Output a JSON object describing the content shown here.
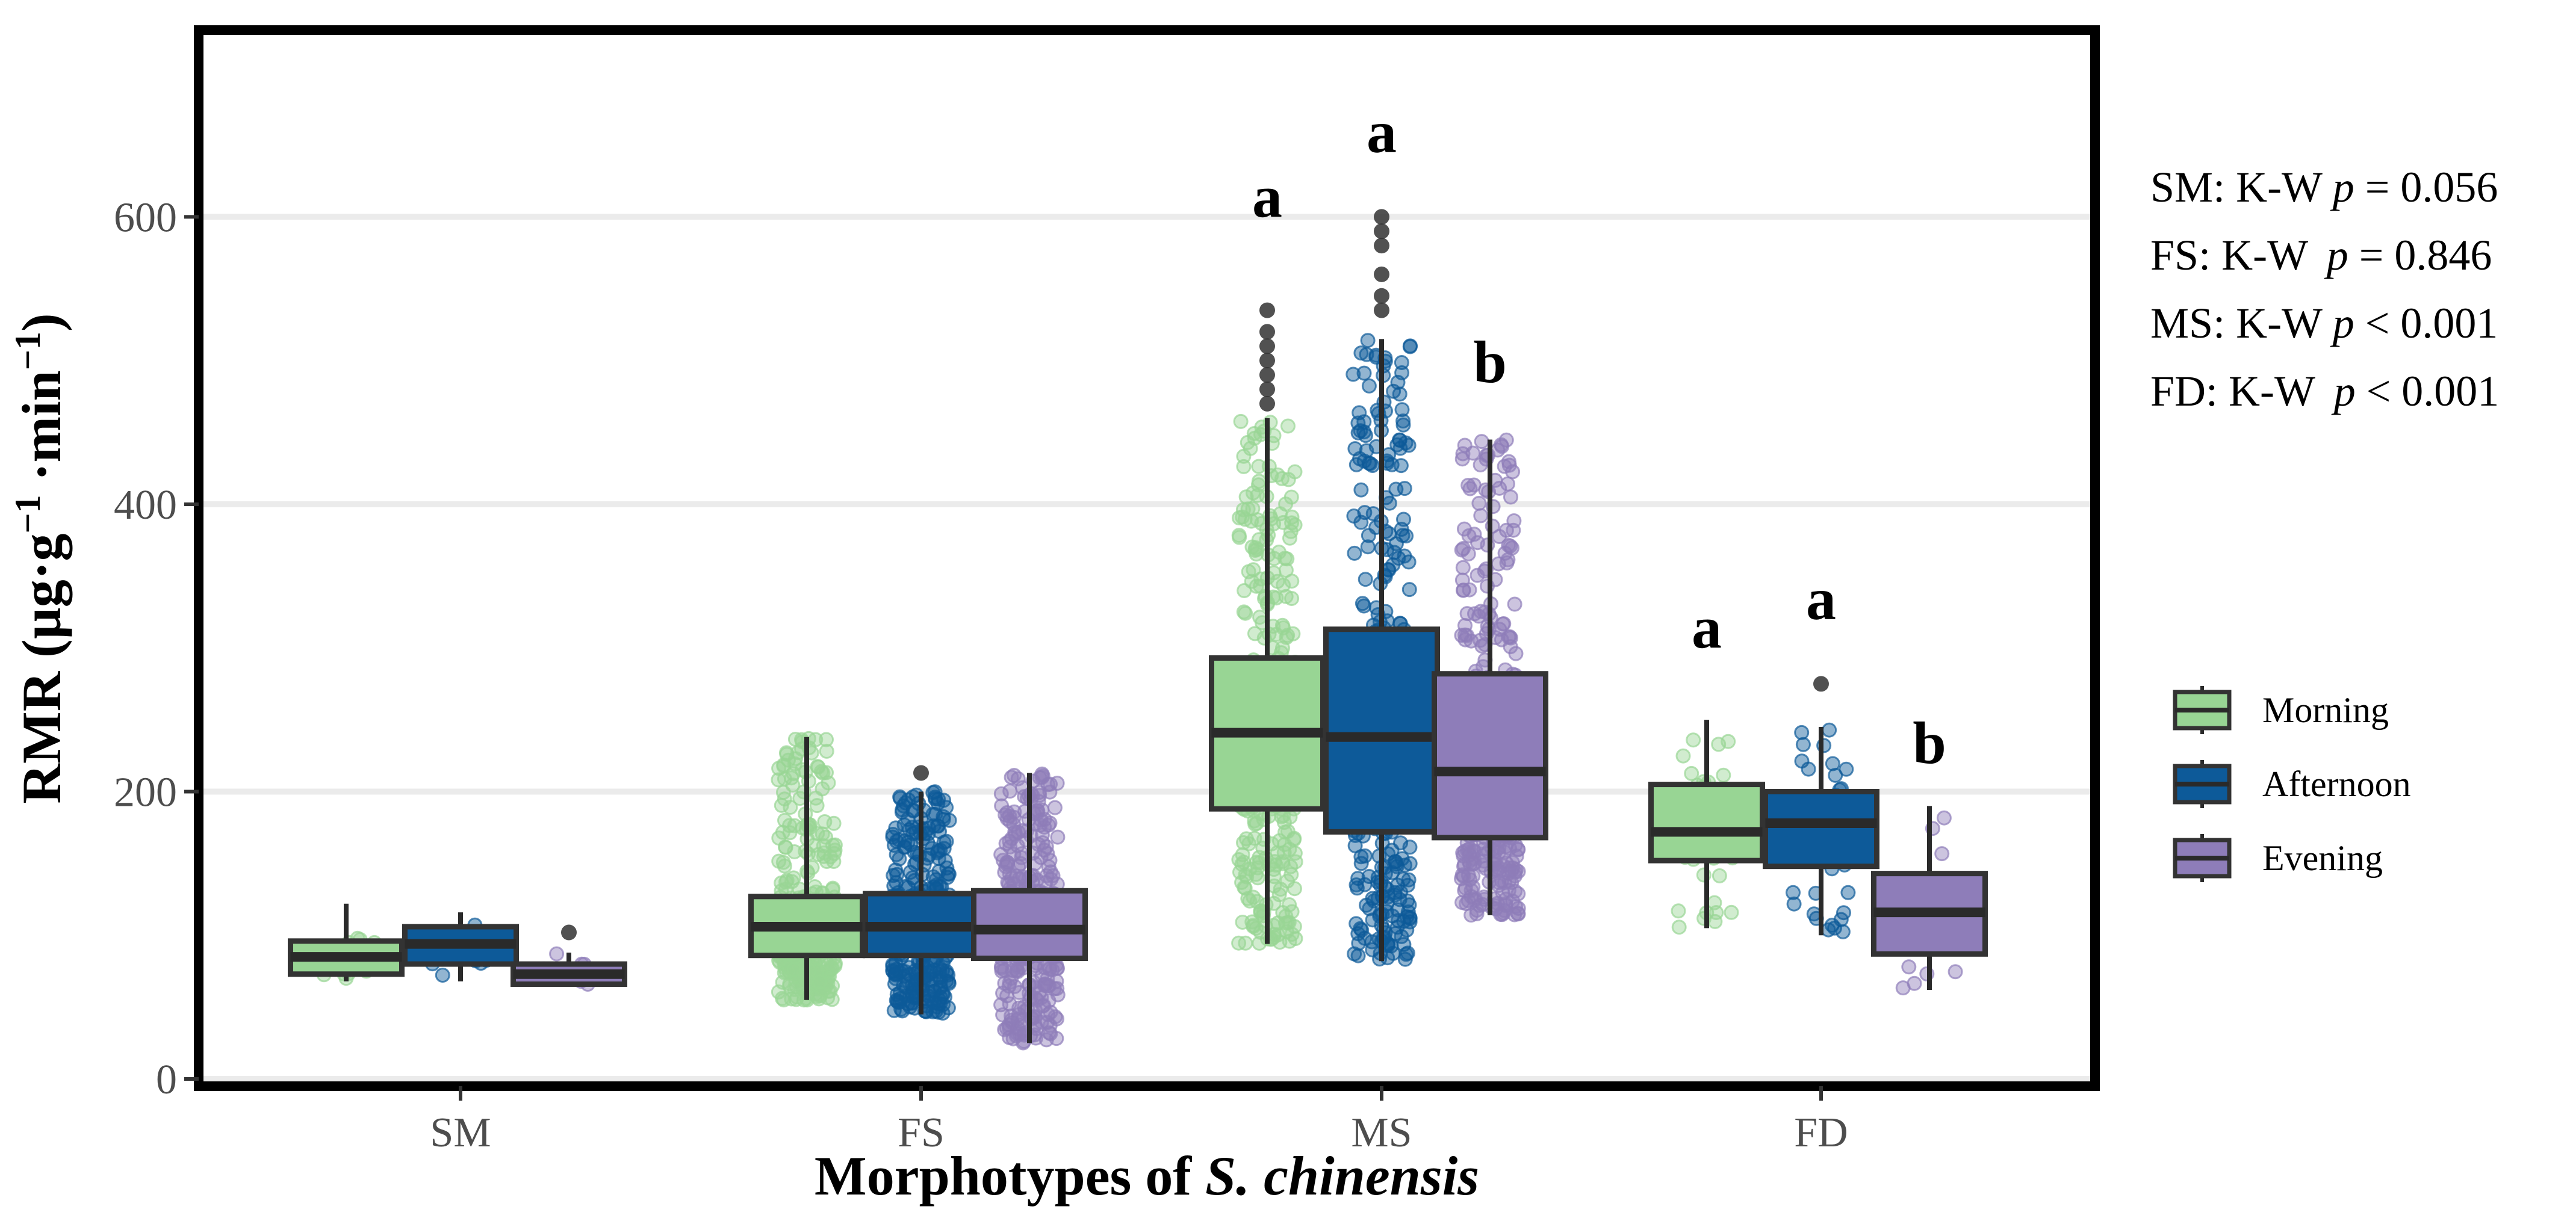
{
  "chart_data": {
    "type": "boxplot",
    "title": "",
    "xlabel_prefix": "Morphotypes of ",
    "xlabel_italic": "S. chinensis",
    "ylabel_main": "RMR (µg·g",
    "ylabel_sup1": "−1",
    "ylabel_mid": " ·min",
    "ylabel_sup2": "−1",
    "ylabel_end": ")",
    "ylim": [
      -5,
      730
    ],
    "yticks": [
      0,
      200,
      400,
      600
    ],
    "ytick_labels": [
      "0",
      "200",
      "400",
      "600"
    ],
    "categories": [
      "SM",
      "FS",
      "MS",
      "FD"
    ],
    "series": [
      {
        "name": "Morning",
        "color": "#98D594",
        "boxes": [
          {
            "min": 68,
            "q1": 73,
            "median": 85,
            "q3": 96,
            "max": 122,
            "n_points": 14,
            "outliers": []
          },
          {
            "min": 55,
            "q1": 86,
            "median": 106,
            "q3": 127,
            "max": 238,
            "n_points": 420,
            "outliers": []
          },
          {
            "min": 94,
            "q1": 188,
            "median": 241,
            "q3": 293,
            "max": 460,
            "n_points": 420,
            "outliers": [
              470,
              480,
              490,
              500,
              510,
              520,
              535
            ]
          },
          {
            "min": 105,
            "q1": 152,
            "median": 172,
            "q3": 205,
            "max": 250,
            "n_points": 40,
            "outliers": []
          }
        ]
      },
      {
        "name": "Afternoon",
        "color": "#0D5A99",
        "boxes": [
          {
            "min": 68,
            "q1": 80,
            "median": 94,
            "q3": 106,
            "max": 116,
            "n_points": 10,
            "outliers": []
          },
          {
            "min": 45,
            "q1": 86,
            "median": 106,
            "q3": 129,
            "max": 200,
            "n_points": 420,
            "outliers": [
              213
            ]
          },
          {
            "min": 82,
            "q1": 172,
            "median": 238,
            "q3": 313,
            "max": 515,
            "n_points": 420,
            "outliers": [
              535,
              545,
              560,
              580,
              590,
              600
            ]
          },
          {
            "min": 100,
            "q1": 148,
            "median": 178,
            "q3": 200,
            "max": 245,
            "n_points": 40,
            "outliers": [
              275
            ]
          }
        ]
      },
      {
        "name": "Evening",
        "color": "#8E7DB9",
        "boxes": [
          {
            "min": 66,
            "q1": 66,
            "median": 73,
            "q3": 80,
            "max": 88,
            "n_points": 8,
            "outliers": [
              102
            ]
          },
          {
            "min": 25,
            "q1": 84,
            "median": 104,
            "q3": 131,
            "max": 213,
            "n_points": 420,
            "outliers": []
          },
          {
            "min": 114,
            "q1": 168,
            "median": 214,
            "q3": 282,
            "max": 445,
            "n_points": 420,
            "outliers": []
          },
          {
            "min": 62,
            "q1": 87,
            "median": 116,
            "q3": 143,
            "max": 190,
            "n_points": 14,
            "outliers": []
          }
        ]
      }
    ],
    "significance_letters": [
      {
        "category": "MS",
        "series": "Morning",
        "label": "a",
        "y": 600
      },
      {
        "category": "MS",
        "series": "Afternoon",
        "label": "a",
        "y": 645
      },
      {
        "category": "MS",
        "series": "Evening",
        "label": "b",
        "y": 485
      },
      {
        "category": "FD",
        "series": "Morning",
        "label": "a",
        "y": 300
      },
      {
        "category": "FD",
        "series": "Afternoon",
        "label": "a",
        "y": 320
      },
      {
        "category": "FD",
        "series": "Evening",
        "label": "b",
        "y": 220
      }
    ],
    "stats": [
      {
        "group": "SM:",
        "test": "K-W",
        "p_label": "p",
        "rel": "=",
        "value": "0.056"
      },
      {
        "group": "FS:",
        "test": "K-W",
        "p_label": "p",
        "rel": "=",
        "value": "0.846"
      },
      {
        "group": "MS:",
        "test": "K-W",
        "p_label": "p",
        "rel": "<",
        "value": "0.001"
      },
      {
        "group": "FD:",
        "test": "K-W",
        "p_label": "p",
        "rel": "<",
        "value": "0.001"
      }
    ],
    "legend": [
      {
        "label": "Morning",
        "color": "#98D594"
      },
      {
        "label": "Afternoon",
        "color": "#0D5A99"
      },
      {
        "label": "Evening",
        "color": "#8E7DB9"
      }
    ],
    "legend_position": "right",
    "grid": true
  }
}
